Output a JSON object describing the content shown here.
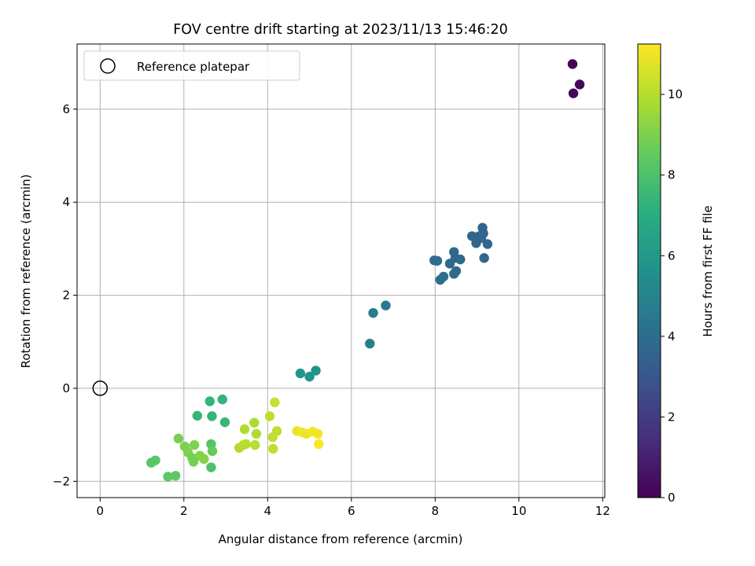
{
  "chart_data": {
    "type": "scatter",
    "title": "FOV centre drift starting at 2023/11/13 15:46:20",
    "xlabel": "Angular distance from reference (arcmin)",
    "ylabel": "Rotation from reference (arcmin)",
    "xlim": [
      -0.55,
      12.05
    ],
    "ylim": [
      -2.35,
      7.4
    ],
    "xticks": [
      0,
      2,
      4,
      6,
      8,
      10,
      12
    ],
    "yticks": [
      -2,
      0,
      2,
      4,
      6
    ],
    "grid": true,
    "legend": {
      "placement": "top-left",
      "entries": [
        "Reference platepar"
      ]
    },
    "reference_point": {
      "x": 0,
      "y": 0
    },
    "colorbar": {
      "label": "Hours from first FF file",
      "min": 0,
      "max": 11.25,
      "ticks": [
        0,
        2,
        4,
        6,
        8,
        10
      ],
      "colormap": "viridis"
    },
    "points": [
      {
        "x": 11.28,
        "y": 6.97,
        "c": 0.1
      },
      {
        "x": 11.45,
        "y": 6.53,
        "c": 0.2
      },
      {
        "x": 11.3,
        "y": 6.34,
        "c": 0.3
      },
      {
        "x": 9.13,
        "y": 3.45,
        "c": 3.6
      },
      {
        "x": 9.15,
        "y": 3.33,
        "c": 3.6
      },
      {
        "x": 9.05,
        "y": 3.27,
        "c": 3.7
      },
      {
        "x": 8.88,
        "y": 3.27,
        "c": 3.7
      },
      {
        "x": 9.1,
        "y": 3.23,
        "c": 3.7
      },
      {
        "x": 9.25,
        "y": 3.1,
        "c": 3.7
      },
      {
        "x": 8.98,
        "y": 3.12,
        "c": 3.7
      },
      {
        "x": 9.17,
        "y": 2.8,
        "c": 3.8
      },
      {
        "x": 8.45,
        "y": 2.93,
        "c": 3.8
      },
      {
        "x": 8.48,
        "y": 2.8,
        "c": 3.8
      },
      {
        "x": 8.6,
        "y": 2.77,
        "c": 3.8
      },
      {
        "x": 8.35,
        "y": 2.68,
        "c": 3.8
      },
      {
        "x": 7.98,
        "y": 2.75,
        "c": 3.9
      },
      {
        "x": 8.05,
        "y": 2.74,
        "c": 3.9
      },
      {
        "x": 8.5,
        "y": 2.52,
        "c": 3.9
      },
      {
        "x": 8.45,
        "y": 2.46,
        "c": 3.9
      },
      {
        "x": 8.2,
        "y": 2.4,
        "c": 4.0
      },
      {
        "x": 8.12,
        "y": 2.33,
        "c": 4.0
      },
      {
        "x": 6.82,
        "y": 1.78,
        "c": 4.6
      },
      {
        "x": 6.52,
        "y": 1.62,
        "c": 4.7
      },
      {
        "x": 6.44,
        "y": 0.96,
        "c": 4.8
      },
      {
        "x": 5.15,
        "y": 0.38,
        "c": 5.7
      },
      {
        "x": 4.78,
        "y": 0.32,
        "c": 5.8
      },
      {
        "x": 5.0,
        "y": 0.25,
        "c": 5.8
      },
      {
        "x": 2.92,
        "y": -0.24,
        "c": 7.3
      },
      {
        "x": 2.62,
        "y": -0.28,
        "c": 7.3
      },
      {
        "x": 2.32,
        "y": -0.59,
        "c": 7.4
      },
      {
        "x": 2.67,
        "y": -0.6,
        "c": 7.4
      },
      {
        "x": 2.98,
        "y": -0.73,
        "c": 7.5
      },
      {
        "x": 1.22,
        "y": -1.6,
        "c": 8.3
      },
      {
        "x": 1.32,
        "y": -1.55,
        "c": 8.3
      },
      {
        "x": 1.62,
        "y": -1.9,
        "c": 8.4
      },
      {
        "x": 1.8,
        "y": -1.88,
        "c": 8.4
      },
      {
        "x": 2.65,
        "y": -1.7,
        "c": 8.0
      },
      {
        "x": 2.65,
        "y": -1.2,
        "c": 8.2
      },
      {
        "x": 2.68,
        "y": -1.35,
        "c": 8.6
      },
      {
        "x": 1.87,
        "y": -1.08,
        "c": 8.9
      },
      {
        "x": 2.02,
        "y": -1.25,
        "c": 9.0
      },
      {
        "x": 2.25,
        "y": -1.22,
        "c": 9.0
      },
      {
        "x": 2.1,
        "y": -1.38,
        "c": 9.0
      },
      {
        "x": 2.2,
        "y": -1.5,
        "c": 8.8
      },
      {
        "x": 2.38,
        "y": -1.45,
        "c": 9.1
      },
      {
        "x": 2.48,
        "y": -1.52,
        "c": 9.1
      },
      {
        "x": 2.23,
        "y": -1.58,
        "c": 8.9
      },
      {
        "x": 3.32,
        "y": -1.28,
        "c": 9.9
      },
      {
        "x": 3.48,
        "y": -1.2,
        "c": 10.0
      },
      {
        "x": 3.42,
        "y": -1.22,
        "c": 10.0
      },
      {
        "x": 3.7,
        "y": -1.22,
        "c": 10.0
      },
      {
        "x": 3.45,
        "y": -0.88,
        "c": 9.9
      },
      {
        "x": 3.73,
        "y": -0.98,
        "c": 9.9
      },
      {
        "x": 3.68,
        "y": -0.74,
        "c": 9.8
      },
      {
        "x": 4.05,
        "y": -0.6,
        "c": 10.1
      },
      {
        "x": 4.17,
        "y": -0.3,
        "c": 10.3
      },
      {
        "x": 4.22,
        "y": -0.92,
        "c": 10.1
      },
      {
        "x": 4.12,
        "y": -1.05,
        "c": 10.2
      },
      {
        "x": 4.13,
        "y": -1.3,
        "c": 10.2
      },
      {
        "x": 4.7,
        "y": -0.92,
        "c": 10.9
      },
      {
        "x": 4.83,
        "y": -0.95,
        "c": 11.0
      },
      {
        "x": 4.93,
        "y": -0.98,
        "c": 11.0
      },
      {
        "x": 5.08,
        "y": -0.93,
        "c": 11.1
      },
      {
        "x": 5.2,
        "y": -0.98,
        "c": 11.1
      },
      {
        "x": 5.22,
        "y": -1.2,
        "c": 11.2
      }
    ]
  }
}
